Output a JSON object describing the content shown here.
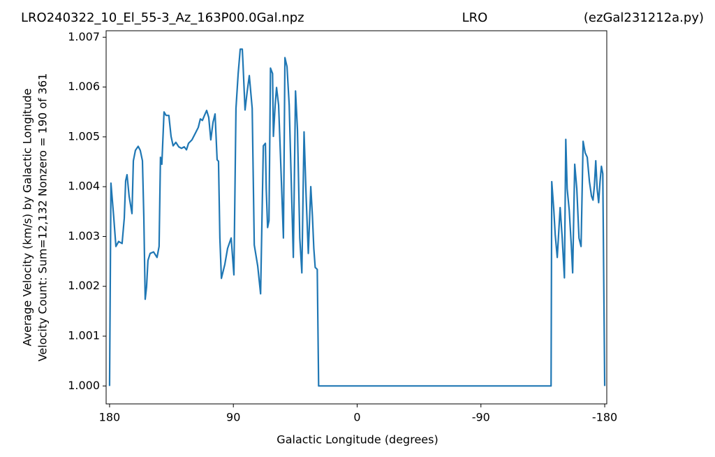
{
  "chart_data": {
    "type": "line",
    "title": "LRO240322_10_El_55-3_Az_163P00.0Gal.npz",
    "title_center": "LRO",
    "title_right": "(ezGal231212a.py)",
    "ylabel": [
      "Average Velocity (km/s) by Galactic Longitude",
      "Velocity Count: Sum=12,132 Nonzero = 190 of 361"
    ],
    "xlabel": "Galactic Longitude (degrees)",
    "color": "#1f77b4",
    "xlim": [
      182.5,
      -181.5
    ],
    "ylim": [
      0.99964,
      1.00713
    ],
    "xticks": [
      180,
      90,
      0,
      -90,
      -180
    ],
    "yticks": [
      {
        "value": 1,
        "label": "1.000"
      },
      1.001,
      1.002,
      1.003,
      1.004,
      1.005,
      1.006,
      1.007
    ],
    "x": [
      180,
      179,
      177,
      175.4,
      173.4,
      170.9,
      169.3,
      168.3,
      167.3,
      165.8,
      163.7,
      162.7,
      161.2,
      159.2,
      157.7,
      156.1,
      155.1,
      154.1,
      153.1,
      152.1,
      150.5,
      148,
      145.5,
      144,
      143,
      142,
      140.4,
      138.9,
      136.9,
      135.3,
      133.8,
      131.8,
      129.7,
      127.7,
      125.7,
      124.1,
      122.6,
      120.1,
      117.5,
      115.5,
      114,
      112.5,
      111,
      109.4,
      107.9,
      106.4,
      104.8,
      103.3,
      101.8,
      100.8,
      99.8,
      98.7,
      96.2,
      94.2,
      91.6,
      89.6,
      88.1,
      86.5,
      85,
      83.5,
      83,
      81.5,
      79.9,
      78.4,
      76.3,
      74.8,
      72.3,
      70.2,
      68.2,
      66.7,
      66.1,
      65.1,
      64.1,
      63,
      61.5,
      60.9,
      59.6,
      58.6,
      57.1,
      55.8,
      54.6,
      53.6,
      52.5,
      51,
      49.4,
      47.9,
      46.4,
      44.8,
      43.4,
      41.7,
      40.2,
      38.6,
      37.1,
      35.5,
      33.7,
      32.5,
      31.5,
      30.5,
      29,
      28,
      -141,
      -141.5,
      -143,
      -144,
      -145.5,
      -147.6,
      -149.1,
      -150.7,
      -151.7,
      -152.7,
      -154.2,
      -155.7,
      -156.7,
      -158.2,
      -159.7,
      -161.3,
      -162.8,
      -164.3,
      -165.8,
      -167.3,
      -168.9,
      -170.4,
      -171.5,
      -172.5,
      -173.5,
      -174.5,
      -175.6,
      -176.6,
      -177.6,
      -178.6,
      -180
    ],
    "values": [
      1.0,
      1.00407,
      1.0034,
      1.0028,
      1.0029,
      1.00286,
      1.00337,
      1.00412,
      1.00424,
      1.00381,
      1.00346,
      1.00452,
      1.00473,
      1.00481,
      1.00473,
      1.00452,
      1.0034,
      1.00174,
      1.00199,
      1.00252,
      1.00266,
      1.00269,
      1.00258,
      1.0028,
      1.00459,
      1.00445,
      1.0055,
      1.00543,
      1.00543,
      1.00501,
      1.00482,
      1.00489,
      1.0048,
      1.00477,
      1.0048,
      1.00474,
      1.00487,
      1.00494,
      1.00508,
      1.00519,
      1.00536,
      1.00533,
      1.00543,
      1.00553,
      1.00539,
      1.00494,
      1.00529,
      1.00546,
      1.00454,
      1.00451,
      1.00297,
      1.00216,
      1.00244,
      1.00276,
      1.00297,
      1.00223,
      1.00557,
      1.00627,
      1.00676,
      1.00676,
      1.00648,
      1.00554,
      1.00592,
      1.00623,
      1.00557,
      1.00283,
      1.00241,
      1.00185,
      1.00482,
      1.00487,
      1.00396,
      1.00318,
      1.00332,
      1.00638,
      1.00627,
      1.00501,
      1.00564,
      1.00599,
      1.00564,
      1.00466,
      1.00374,
      1.00297,
      1.00659,
      1.00641,
      1.00564,
      1.0041,
      1.00258,
      1.00592,
      1.00515,
      1.00297,
      1.00227,
      1.0051,
      1.00381,
      1.00266,
      1.004,
      1.0034,
      1.00276,
      1.00238,
      1.00234,
      1.0,
      1.0,
      1.0041,
      1.00353,
      1.00304,
      1.00258,
      1.00358,
      1.00297,
      1.00217,
      1.00495,
      1.00396,
      1.00353,
      1.00283,
      1.00227,
      1.00445,
      1.00396,
      1.00297,
      1.0028,
      1.00491,
      1.00468,
      1.00459,
      1.0041,
      1.00381,
      1.00373,
      1.00402,
      1.00452,
      1.00396,
      1.00368,
      1.0041,
      1.00441,
      1.00426,
      1.0
    ]
  }
}
